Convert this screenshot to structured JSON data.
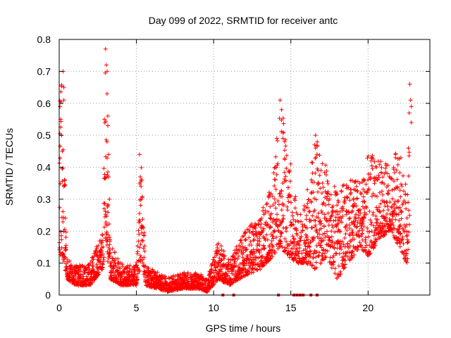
{
  "chart_data": {
    "type": "scatter",
    "title": "Day 099 of 2022, SRMTID for receiver antc",
    "xlabel": "GPS time / hours",
    "ylabel": "SRMTID / TECUs",
    "xlim": [
      0,
      24
    ],
    "ylim": [
      0,
      0.8
    ],
    "x_ticks": [
      0,
      5,
      10,
      15,
      20
    ],
    "y_ticks": [
      0,
      0.1,
      0.2,
      0.3,
      0.4,
      0.5,
      0.6,
      0.7,
      0.8
    ],
    "x_tick_labels": [
      "0",
      "5",
      "10",
      "15",
      "20"
    ],
    "y_tick_labels": [
      "0",
      "0.1",
      "0.2",
      "0.3",
      "0.4",
      "0.5",
      "0.6",
      "0.7",
      "0.8"
    ],
    "grid": true,
    "marker": "+",
    "color": "#ff0000",
    "series_envelope": [
      {
        "x": 0.0,
        "low": 0.13,
        "high": 0.6
      },
      {
        "x": 0.2,
        "low": 0.12,
        "high": 0.7
      },
      {
        "x": 0.5,
        "low": 0.05,
        "high": 0.12
      },
      {
        "x": 1.0,
        "low": 0.03,
        "high": 0.09
      },
      {
        "x": 2.0,
        "low": 0.03,
        "high": 0.1
      },
      {
        "x": 2.8,
        "low": 0.08,
        "high": 0.2
      },
      {
        "x": 3.0,
        "low": 0.15,
        "high": 0.77
      },
      {
        "x": 3.3,
        "low": 0.05,
        "high": 0.16
      },
      {
        "x": 4.0,
        "low": 0.03,
        "high": 0.1
      },
      {
        "x": 5.0,
        "low": 0.03,
        "high": 0.1
      },
      {
        "x": 5.3,
        "low": 0.1,
        "high": 0.44
      },
      {
        "x": 5.6,
        "low": 0.03,
        "high": 0.09
      },
      {
        "x": 7.0,
        "low": 0.01,
        "high": 0.06
      },
      {
        "x": 8.0,
        "low": 0.02,
        "high": 0.07
      },
      {
        "x": 9.0,
        "low": 0.02,
        "high": 0.07
      },
      {
        "x": 9.6,
        "low": 0.01,
        "high": 0.05
      },
      {
        "x": 10.3,
        "low": 0.05,
        "high": 0.17
      },
      {
        "x": 11.0,
        "low": 0.03,
        "high": 0.11
      },
      {
        "x": 12.0,
        "low": 0.06,
        "high": 0.2
      },
      {
        "x": 13.0,
        "low": 0.08,
        "high": 0.25
      },
      {
        "x": 13.8,
        "low": 0.12,
        "high": 0.35
      },
      {
        "x": 14.3,
        "low": 0.15,
        "high": 0.61
      },
      {
        "x": 14.8,
        "low": 0.12,
        "high": 0.48
      },
      {
        "x": 15.5,
        "low": 0.1,
        "high": 0.25
      },
      {
        "x": 16.0,
        "low": 0.1,
        "high": 0.31
      },
      {
        "x": 16.6,
        "low": 0.08,
        "high": 0.5
      },
      {
        "x": 17.3,
        "low": 0.12,
        "high": 0.4
      },
      {
        "x": 18.0,
        "low": 0.05,
        "high": 0.32
      },
      {
        "x": 18.7,
        "low": 0.1,
        "high": 0.37
      },
      {
        "x": 19.5,
        "low": 0.15,
        "high": 0.36
      },
      {
        "x": 20.0,
        "low": 0.12,
        "high": 0.44
      },
      {
        "x": 20.8,
        "low": 0.18,
        "high": 0.43
      },
      {
        "x": 21.5,
        "low": 0.2,
        "high": 0.4
      },
      {
        "x": 22.0,
        "low": 0.15,
        "high": 0.48
      },
      {
        "x": 22.5,
        "low": 0.1,
        "high": 0.33
      },
      {
        "x": 22.7,
        "low": 0.1,
        "high": 0.66
      }
    ],
    "spikes": [
      {
        "x": 0.05,
        "y": 0.59
      },
      {
        "x": 0.1,
        "y": 0.55
      },
      {
        "x": 0.15,
        "y": 0.5
      },
      {
        "x": 0.2,
        "y": 0.45
      },
      {
        "x": 0.25,
        "y": 0.7
      },
      {
        "x": 0.3,
        "y": 0.65
      },
      {
        "x": 0.3,
        "y": 0.61
      },
      {
        "x": 3.0,
        "y": 0.77
      },
      {
        "x": 3.05,
        "y": 0.72
      },
      {
        "x": 3.1,
        "y": 0.7
      },
      {
        "x": 3.1,
        "y": 0.63
      },
      {
        "x": 3.15,
        "y": 0.56
      },
      {
        "x": 3.15,
        "y": 0.53
      },
      {
        "x": 3.2,
        "y": 0.44
      },
      {
        "x": 3.2,
        "y": 0.37
      },
      {
        "x": 3.25,
        "y": 0.3
      },
      {
        "x": 5.2,
        "y": 0.44
      },
      {
        "x": 5.25,
        "y": 0.37
      },
      {
        "x": 5.3,
        "y": 0.36
      },
      {
        "x": 5.3,
        "y": 0.34
      },
      {
        "x": 14.3,
        "y": 0.61
      },
      {
        "x": 14.4,
        "y": 0.58
      },
      {
        "x": 14.5,
        "y": 0.51
      },
      {
        "x": 14.6,
        "y": 0.48
      },
      {
        "x": 16.6,
        "y": 0.5
      },
      {
        "x": 16.6,
        "y": 0.46
      },
      {
        "x": 22.7,
        "y": 0.66
      },
      {
        "x": 22.75,
        "y": 0.61
      },
      {
        "x": 22.8,
        "y": 0.59
      },
      {
        "x": 22.8,
        "y": 0.54
      }
    ],
    "zero_markers": [
      {
        "x": 10.6,
        "y": 0
      },
      {
        "x": 11.3,
        "y": 0
      },
      {
        "x": 14.2,
        "y": 0
      },
      {
        "x": 15.2,
        "y": 0
      },
      {
        "x": 15.4,
        "y": 0
      },
      {
        "x": 15.6,
        "y": 0
      },
      {
        "x": 15.8,
        "y": 0
      },
      {
        "x": 16.3,
        "y": 0
      },
      {
        "x": 16.7,
        "y": 0
      }
    ]
  }
}
